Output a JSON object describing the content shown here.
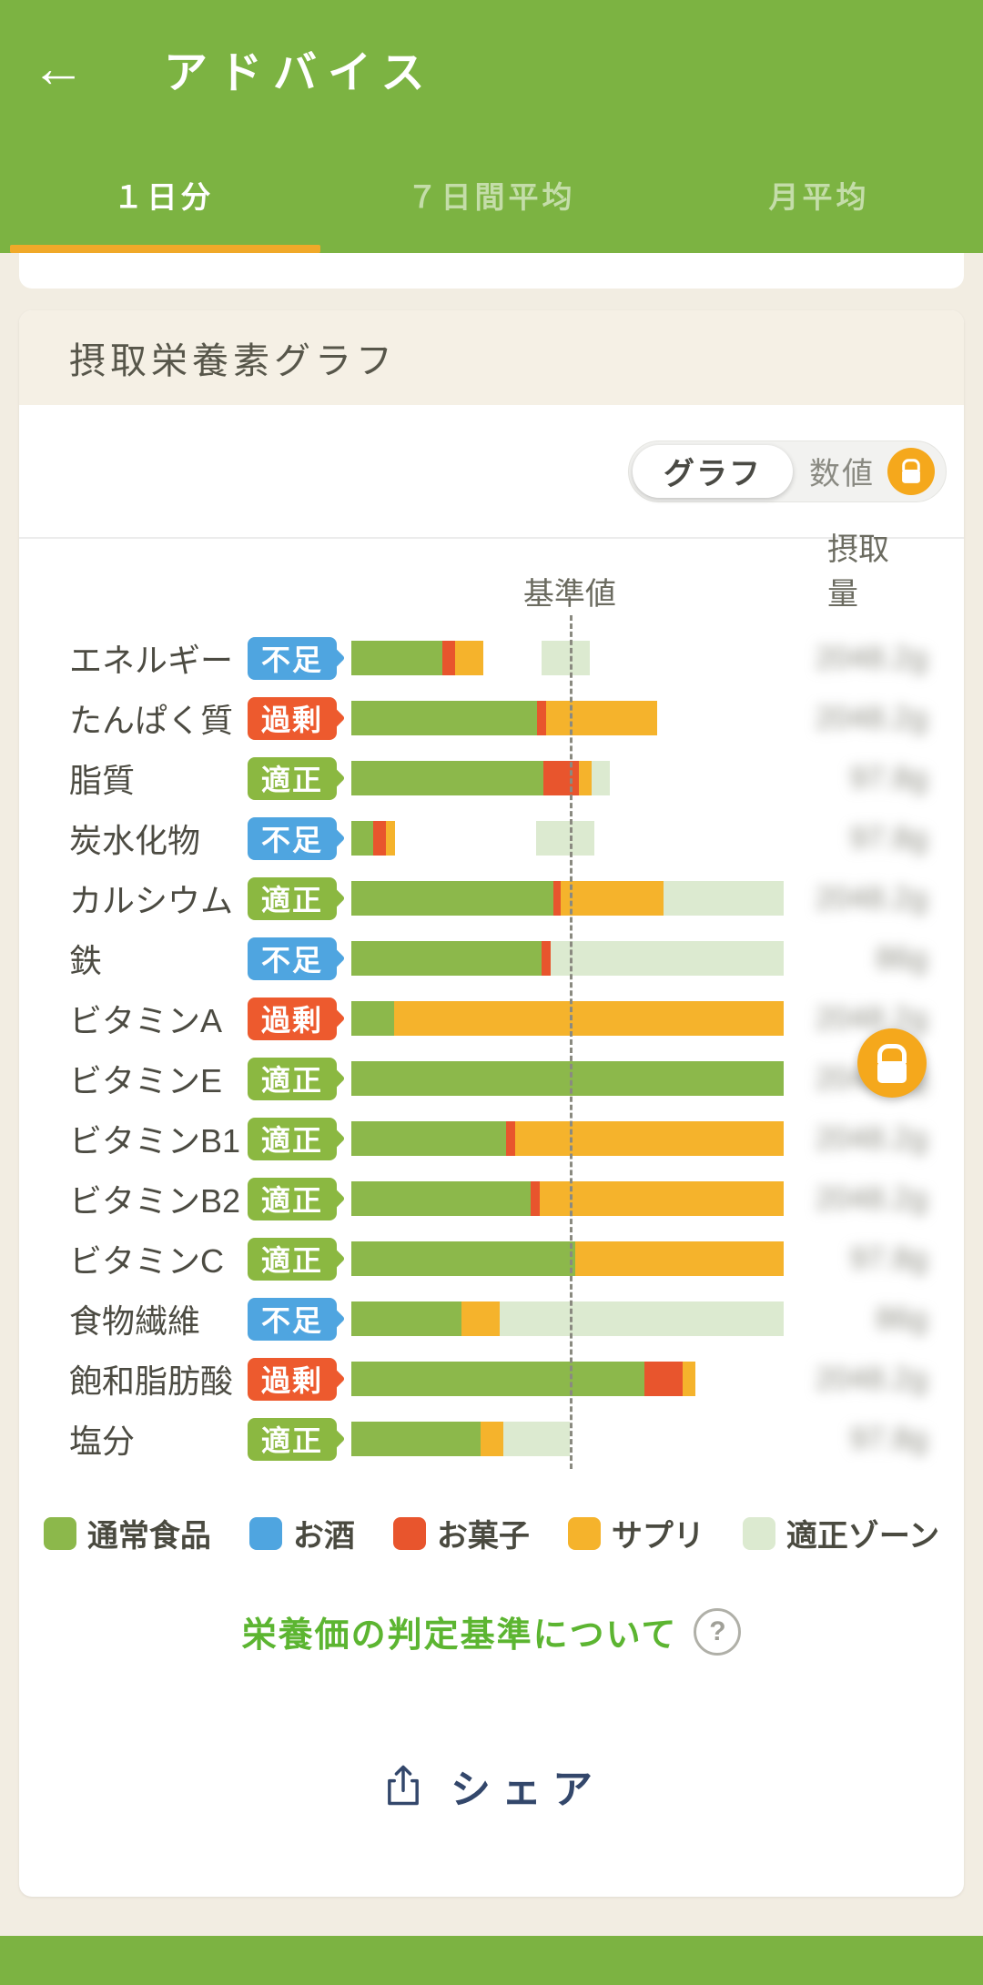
{
  "colors": {
    "header": "#7cb342",
    "tab_underline": "#f0a929",
    "page_bg": "#f2ede2",
    "badge_shortage": "#4fa5e0",
    "badge_excess": "#ed5a2e",
    "badge_proper": "#8bb841",
    "bar_food": "#8cb84b",
    "bar_alcohol": "#4fa5e0",
    "bar_sweets": "#e8552d",
    "bar_supplement": "#f5b32c",
    "zone": "#dcead0",
    "accent_orange": "#f5a81c",
    "link_green": "#5cb531",
    "share_navy": "#33476b"
  },
  "icons": {
    "back": "←",
    "help": "?"
  },
  "header": {
    "title": "アドバイス",
    "tabs": [
      {
        "label": "１日分",
        "active": true
      },
      {
        "label": "７日間平均",
        "active": false
      },
      {
        "label": "月平均",
        "active": false
      }
    ]
  },
  "card": {
    "title": "摂取栄養素グラフ",
    "toggle": {
      "options": [
        {
          "label": "グラフ",
          "selected": true
        },
        {
          "label": "数値",
          "selected": false,
          "locked": true
        }
      ]
    },
    "chart": {
      "type": "bar",
      "standard_label": "基準値",
      "intake_label": "摂取量",
      "standard_line_pct": 50.5,
      "legend": [
        {
          "label": "通常食品",
          "type": "food"
        },
        {
          "label": "お酒",
          "type": "alcohol"
        },
        {
          "label": "お菓子",
          "type": "sweets"
        },
        {
          "label": "サプリ",
          "type": "supplement"
        },
        {
          "label": "適正ゾーン",
          "type": "zone"
        }
      ],
      "rows": [
        {
          "label": "エネルギー",
          "status": {
            "label": "不足",
            "type": "shortage"
          },
          "segments": [
            {
              "type": "food",
              "pct": 21.1
            },
            {
              "type": "sweets",
              "pct": 2.9
            },
            {
              "type": "supplement",
              "pct": 6.5
            }
          ],
          "zone": {
            "start_pct": 44.0,
            "end_pct": 55.2
          },
          "intake_blurred": "2048.2g"
        },
        {
          "label": "たんぱく質",
          "status": {
            "label": "過剰",
            "type": "excess"
          },
          "segments": [
            {
              "type": "food",
              "pct": 42.9
            },
            {
              "type": "sweets",
              "pct": 2.1
            },
            {
              "type": "supplement",
              "pct": 25.7
            }
          ],
          "zone": {
            "start_pct": 39.4,
            "end_pct": 52.4
          },
          "intake_blurred": "2048.2g"
        },
        {
          "label": "脂質",
          "status": {
            "label": "適正",
            "type": "proper"
          },
          "segments": [
            {
              "type": "food",
              "pct": 44.4
            },
            {
              "type": "sweets",
              "pct": 8.2
            },
            {
              "type": "supplement",
              "pct": 2.9
            }
          ],
          "zone": {
            "start_pct": 44.0,
            "end_pct": 59.8
          },
          "intake_blurred": "97.8g"
        },
        {
          "label": "炭水化物",
          "status": {
            "label": "不足",
            "type": "shortage"
          },
          "segments": [
            {
              "type": "food",
              "pct": 5.1
            },
            {
              "type": "sweets",
              "pct": 2.9
            },
            {
              "type": "supplement",
              "pct": 2.1
            }
          ],
          "zone": {
            "start_pct": 42.7,
            "end_pct": 56.2
          },
          "intake_blurred": "97.8g"
        },
        {
          "label": "カルシウム",
          "status": {
            "label": "適正",
            "type": "proper"
          },
          "segments": [
            {
              "type": "food",
              "pct": 46.7
            },
            {
              "type": "sweets",
              "pct": 1.7
            },
            {
              "type": "supplement",
              "pct": 23.8
            }
          ],
          "zone": {
            "start_pct": 41.7,
            "end_pct": 100
          },
          "intake_blurred": "2048.2g"
        },
        {
          "label": "鉄",
          "status": {
            "label": "不足",
            "type": "shortage"
          },
          "segments": [
            {
              "type": "food",
              "pct": 44.0
            },
            {
              "type": "sweets",
              "pct": 2.1
            }
          ],
          "zone": {
            "start_pct": 41.7,
            "end_pct": 100
          },
          "intake_blurred": "86g"
        },
        {
          "label": "ビタミンA",
          "status": {
            "label": "過剰",
            "type": "excess"
          },
          "segments": [
            {
              "type": "food",
              "pct": 9.9
            },
            {
              "type": "supplement",
              "pct": 90.1
            }
          ],
          "zone": {
            "start_pct": 44.6,
            "end_pct": 100
          },
          "intake_blurred": "2048.2g"
        },
        {
          "label": "ビタミンE",
          "status": {
            "label": "適正",
            "type": "proper"
          },
          "segments": [
            {
              "type": "food",
              "pct": 100
            }
          ],
          "zone": {
            "start_pct": 50.5,
            "end_pct": 100
          },
          "intake_blurred": "2048.2g"
        },
        {
          "label": "ビタミンB1",
          "status": {
            "label": "適正",
            "type": "proper"
          },
          "segments": [
            {
              "type": "food",
              "pct": 35.8
            },
            {
              "type": "sweets",
              "pct": 2.1
            },
            {
              "type": "supplement",
              "pct": 62.1
            }
          ],
          "zone": {
            "start_pct": 44.6,
            "end_pct": 100
          },
          "intake_blurred": "2048.2g"
        },
        {
          "label": "ビタミンB2",
          "status": {
            "label": "適正",
            "type": "proper"
          },
          "segments": [
            {
              "type": "food",
              "pct": 41.5
            },
            {
              "type": "sweets",
              "pct": 2.1
            },
            {
              "type": "supplement",
              "pct": 56.4
            }
          ],
          "zone": {
            "start_pct": 44.6,
            "end_pct": 100
          },
          "intake_blurred": "2048.2g"
        },
        {
          "label": "ビタミンC",
          "status": {
            "label": "適正",
            "type": "proper"
          },
          "segments": [
            {
              "type": "food",
              "pct": 51.8
            },
            {
              "type": "supplement",
              "pct": 48.2
            }
          ],
          "zone": {
            "start_pct": 50.5,
            "end_pct": 100
          },
          "intake_blurred": "97.8g"
        },
        {
          "label": "食物繊維",
          "status": {
            "label": "不足",
            "type": "shortage"
          },
          "segments": [
            {
              "type": "food",
              "pct": 25.5
            },
            {
              "type": "supplement",
              "pct": 8.8
            }
          ],
          "zone": {
            "start_pct": 34.3,
            "end_pct": 100
          },
          "intake_blurred": "86g"
        },
        {
          "label": "飽和脂肪酸",
          "status": {
            "label": "過剰",
            "type": "excess"
          },
          "segments": [
            {
              "type": "food",
              "pct": 67.8
            },
            {
              "type": "sweets",
              "pct": 8.8
            },
            {
              "type": "supplement",
              "pct": 2.9
            }
          ],
          "zone": null,
          "intake_blurred": "2048.2g"
        },
        {
          "label": "塩分",
          "status": {
            "label": "適正",
            "type": "proper"
          },
          "segments": [
            {
              "type": "food",
              "pct": 29.9
            },
            {
              "type": "supplement",
              "pct": 5.3
            }
          ],
          "zone": {
            "start_pct": 0,
            "end_pct": 50.5
          },
          "intake_blurred": "97.8g"
        }
      ]
    },
    "criteria_link": "栄養価の判定基準について",
    "share_label": "シェア"
  }
}
